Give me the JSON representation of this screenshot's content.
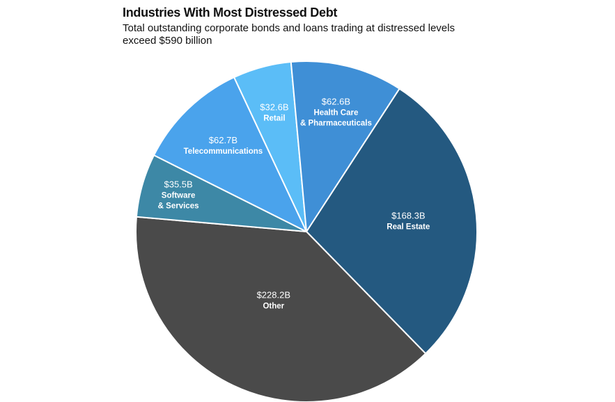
{
  "chart_data": {
    "type": "pie",
    "title": "Industries With Most Distressed Debt",
    "subtitle": "Total outstanding corporate bonds and loans trading at distressed levels exceed $590 billion",
    "slices": [
      {
        "name": "Real Estate",
        "name_lines": [
          "Real Estate"
        ],
        "value": 168.3,
        "label": "$168.3B",
        "color": "#245980"
      },
      {
        "name": "Other",
        "name_lines": [
          "Other"
        ],
        "value": 228.2,
        "label": "$228.2B",
        "color": "#4a4a4a"
      },
      {
        "name": "Software & Services",
        "name_lines": [
          "Software",
          "& Services"
        ],
        "value": 35.5,
        "label": "$35.5B",
        "color": "#3d88a6"
      },
      {
        "name": "Telecommunications",
        "name_lines": [
          "Telecommunications"
        ],
        "value": 62.7,
        "label": "$62.7B",
        "color": "#4aa3ec"
      },
      {
        "name": "Retail",
        "name_lines": [
          "Retail"
        ],
        "value": 32.6,
        "label": "$32.6B",
        "color": "#5bbdf7"
      },
      {
        "name": "Health Care & Pharmaceuticals",
        "name_lines": [
          "Health Care",
          "& Pharmaceuticals"
        ],
        "value": 62.6,
        "label": "$62.6B",
        "color": "#3f8fd6"
      }
    ]
  }
}
